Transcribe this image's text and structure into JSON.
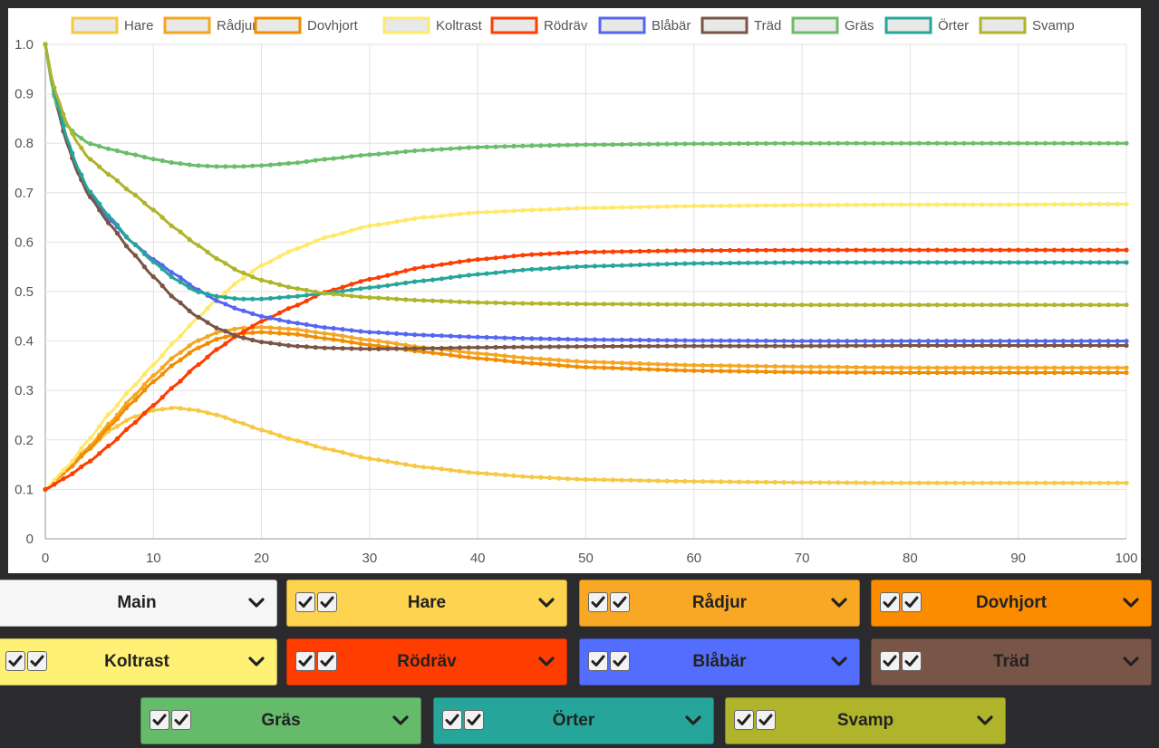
{
  "chart_data": {
    "type": "line",
    "title": "",
    "xlabel": "",
    "ylabel": "",
    "xlim": [
      0,
      100
    ],
    "ylim": [
      0,
      1
    ],
    "x_ticks": [
      "0",
      "10",
      "20",
      "30",
      "40",
      "50",
      "60",
      "70",
      "80",
      "90",
      "100"
    ],
    "y_ticks": [
      "0",
      "0.1",
      "0.2",
      "0.3",
      "0.4",
      "0.5",
      "0.6",
      "0.7",
      "0.8",
      "0.9",
      "1.0"
    ],
    "grid": true,
    "legend_position": "top",
    "series": [
      {
        "name": "Hare",
        "color": "#f7c843",
        "points": [
          [
            0,
            0.1
          ],
          [
            2,
            0.14
          ],
          [
            4,
            0.18
          ],
          [
            6,
            0.22
          ],
          [
            8,
            0.245
          ],
          [
            10,
            0.26
          ],
          [
            12,
            0.265
          ],
          [
            14,
            0.26
          ],
          [
            16,
            0.25
          ],
          [
            18,
            0.235
          ],
          [
            20,
            0.22
          ],
          [
            23,
            0.2
          ],
          [
            26,
            0.182
          ],
          [
            30,
            0.162
          ],
          [
            35,
            0.145
          ],
          [
            40,
            0.133
          ],
          [
            45,
            0.125
          ],
          [
            50,
            0.12
          ],
          [
            60,
            0.116
          ],
          [
            70,
            0.114
          ],
          [
            80,
            0.113
          ],
          [
            90,
            0.113
          ],
          [
            100,
            0.113
          ]
        ]
      },
      {
        "name": "Rådjur",
        "color": "#f5a623",
        "points": [
          [
            0,
            0.1
          ],
          [
            2,
            0.14
          ],
          [
            4,
            0.185
          ],
          [
            6,
            0.235
          ],
          [
            8,
            0.285
          ],
          [
            10,
            0.33
          ],
          [
            12,
            0.37
          ],
          [
            14,
            0.4
          ],
          [
            16,
            0.418
          ],
          [
            18,
            0.426
          ],
          [
            20,
            0.428
          ],
          [
            23,
            0.424
          ],
          [
            26,
            0.415
          ],
          [
            30,
            0.402
          ],
          [
            35,
            0.387
          ],
          [
            40,
            0.375
          ],
          [
            45,
            0.365
          ],
          [
            50,
            0.358
          ],
          [
            60,
            0.351
          ],
          [
            70,
            0.348
          ],
          [
            80,
            0.346
          ],
          [
            90,
            0.346
          ],
          [
            100,
            0.346
          ]
        ]
      },
      {
        "name": "Dovhjort",
        "color": "#f28c00",
        "points": [
          [
            0,
            0.1
          ],
          [
            2,
            0.138
          ],
          [
            4,
            0.18
          ],
          [
            6,
            0.228
          ],
          [
            8,
            0.275
          ],
          [
            10,
            0.318
          ],
          [
            12,
            0.355
          ],
          [
            14,
            0.385
          ],
          [
            16,
            0.405
          ],
          [
            18,
            0.415
          ],
          [
            20,
            0.418
          ],
          [
            23,
            0.414
          ],
          [
            26,
            0.405
          ],
          [
            30,
            0.392
          ],
          [
            35,
            0.378
          ],
          [
            40,
            0.365
          ],
          [
            45,
            0.355
          ],
          [
            50,
            0.347
          ],
          [
            60,
            0.34
          ],
          [
            70,
            0.337
          ],
          [
            80,
            0.336
          ],
          [
            90,
            0.336
          ],
          [
            100,
            0.336
          ]
        ]
      },
      {
        "name": "Koltrast",
        "color": "#ffe96b",
        "points": [
          [
            0,
            0.1
          ],
          [
            2,
            0.145
          ],
          [
            4,
            0.2
          ],
          [
            6,
            0.255
          ],
          [
            8,
            0.305
          ],
          [
            10,
            0.352
          ],
          [
            12,
            0.4
          ],
          [
            14,
            0.445
          ],
          [
            16,
            0.487
          ],
          [
            18,
            0.523
          ],
          [
            20,
            0.553
          ],
          [
            23,
            0.585
          ],
          [
            26,
            0.61
          ],
          [
            30,
            0.633
          ],
          [
            35,
            0.65
          ],
          [
            40,
            0.66
          ],
          [
            45,
            0.665
          ],
          [
            50,
            0.669
          ],
          [
            60,
            0.673
          ],
          [
            70,
            0.675
          ],
          [
            80,
            0.676
          ],
          [
            90,
            0.676
          ],
          [
            100,
            0.677
          ]
        ]
      },
      {
        "name": "Rödräv",
        "color": "#ff3d00",
        "points": [
          [
            0,
            0.1
          ],
          [
            2,
            0.125
          ],
          [
            4,
            0.155
          ],
          [
            6,
            0.19
          ],
          [
            8,
            0.23
          ],
          [
            10,
            0.27
          ],
          [
            12,
            0.31
          ],
          [
            14,
            0.35
          ],
          [
            16,
            0.385
          ],
          [
            18,
            0.415
          ],
          [
            20,
            0.44
          ],
          [
            23,
            0.47
          ],
          [
            26,
            0.5
          ],
          [
            30,
            0.525
          ],
          [
            35,
            0.55
          ],
          [
            40,
            0.565
          ],
          [
            45,
            0.575
          ],
          [
            50,
            0.58
          ],
          [
            60,
            0.583
          ],
          [
            70,
            0.584
          ],
          [
            80,
            0.584
          ],
          [
            90,
            0.584
          ],
          [
            100,
            0.584
          ]
        ]
      },
      {
        "name": "Blåbär",
        "color": "#5566f2",
        "points": [
          [
            0,
            1.0
          ],
          [
            0.5,
            0.94
          ],
          [
            1,
            0.88
          ],
          [
            2,
            0.8
          ],
          [
            3,
            0.74
          ],
          [
            4,
            0.7
          ],
          [
            6,
            0.645
          ],
          [
            8,
            0.6
          ],
          [
            10,
            0.565
          ],
          [
            12,
            0.535
          ],
          [
            14,
            0.505
          ],
          [
            16,
            0.48
          ],
          [
            18,
            0.463
          ],
          [
            20,
            0.45
          ],
          [
            23,
            0.437
          ],
          [
            26,
            0.427
          ],
          [
            30,
            0.418
          ],
          [
            35,
            0.412
          ],
          [
            40,
            0.408
          ],
          [
            45,
            0.405
          ],
          [
            50,
            0.403
          ],
          [
            60,
            0.401
          ],
          [
            70,
            0.4
          ],
          [
            80,
            0.4
          ],
          [
            90,
            0.4
          ],
          [
            100,
            0.4
          ]
        ]
      },
      {
        "name": "Träd",
        "color": "#7a5545",
        "points": [
          [
            0,
            1.0
          ],
          [
            0.5,
            0.94
          ],
          [
            1,
            0.88
          ],
          [
            2,
            0.8
          ],
          [
            3,
            0.74
          ],
          [
            4,
            0.695
          ],
          [
            6,
            0.635
          ],
          [
            8,
            0.58
          ],
          [
            10,
            0.53
          ],
          [
            12,
            0.485
          ],
          [
            14,
            0.45
          ],
          [
            16,
            0.425
          ],
          [
            18,
            0.408
          ],
          [
            20,
            0.398
          ],
          [
            23,
            0.39
          ],
          [
            26,
            0.386
          ],
          [
            30,
            0.384
          ],
          [
            35,
            0.385
          ],
          [
            40,
            0.387
          ],
          [
            45,
            0.388
          ],
          [
            50,
            0.389
          ],
          [
            60,
            0.39
          ],
          [
            70,
            0.39
          ],
          [
            80,
            0.391
          ],
          [
            90,
            0.391
          ],
          [
            100,
            0.391
          ]
        ]
      },
      {
        "name": "Gräs",
        "color": "#6bbd6b",
        "points": [
          [
            0,
            1.0
          ],
          [
            0.5,
            0.93
          ],
          [
            1,
            0.88
          ],
          [
            2,
            0.835
          ],
          [
            3,
            0.815
          ],
          [
            4,
            0.8
          ],
          [
            6,
            0.788
          ],
          [
            8,
            0.778
          ],
          [
            10,
            0.768
          ],
          [
            12,
            0.76
          ],
          [
            14,
            0.755
          ],
          [
            16,
            0.753
          ],
          [
            18,
            0.753
          ],
          [
            20,
            0.755
          ],
          [
            23,
            0.76
          ],
          [
            26,
            0.768
          ],
          [
            30,
            0.777
          ],
          [
            35,
            0.786
          ],
          [
            40,
            0.792
          ],
          [
            45,
            0.795
          ],
          [
            50,
            0.797
          ],
          [
            60,
            0.799
          ],
          [
            70,
            0.8
          ],
          [
            80,
            0.8
          ],
          [
            90,
            0.8
          ],
          [
            100,
            0.8
          ]
        ]
      },
      {
        "name": "Örter",
        "color": "#26a69a",
        "points": [
          [
            0,
            1.0
          ],
          [
            0.5,
            0.94
          ],
          [
            1,
            0.89
          ],
          [
            2,
            0.81
          ],
          [
            3,
            0.75
          ],
          [
            4,
            0.705
          ],
          [
            6,
            0.65
          ],
          [
            8,
            0.6
          ],
          [
            10,
            0.56
          ],
          [
            12,
            0.525
          ],
          [
            14,
            0.5
          ],
          [
            16,
            0.49
          ],
          [
            18,
            0.485
          ],
          [
            20,
            0.485
          ],
          [
            23,
            0.49
          ],
          [
            26,
            0.497
          ],
          [
            30,
            0.508
          ],
          [
            35,
            0.522
          ],
          [
            40,
            0.535
          ],
          [
            45,
            0.545
          ],
          [
            50,
            0.551
          ],
          [
            60,
            0.557
          ],
          [
            70,
            0.559
          ],
          [
            80,
            0.559
          ],
          [
            90,
            0.559
          ],
          [
            100,
            0.559
          ]
        ]
      },
      {
        "name": "Svamp",
        "color": "#afb42b",
        "points": [
          [
            0,
            1.0
          ],
          [
            0.5,
            0.94
          ],
          [
            1,
            0.9
          ],
          [
            2,
            0.84
          ],
          [
            3,
            0.8
          ],
          [
            4,
            0.77
          ],
          [
            6,
            0.735
          ],
          [
            8,
            0.7
          ],
          [
            10,
            0.665
          ],
          [
            12,
            0.628
          ],
          [
            14,
            0.595
          ],
          [
            16,
            0.565
          ],
          [
            18,
            0.54
          ],
          [
            20,
            0.523
          ],
          [
            23,
            0.507
          ],
          [
            26,
            0.496
          ],
          [
            30,
            0.488
          ],
          [
            35,
            0.482
          ],
          [
            40,
            0.478
          ],
          [
            45,
            0.476
          ],
          [
            50,
            0.475
          ],
          [
            60,
            0.474
          ],
          [
            70,
            0.473
          ],
          [
            80,
            0.473
          ],
          [
            90,
            0.473
          ],
          [
            100,
            0.473
          ]
        ]
      }
    ]
  },
  "controls": [
    {
      "label": "Main",
      "bg": "#f6f6f6",
      "checks": false
    },
    {
      "label": "Hare",
      "bg": "#fdd34f",
      "checks": true
    },
    {
      "label": "Rådjur",
      "bg": "#f9a825",
      "checks": true
    },
    {
      "label": "Dovhjort",
      "bg": "#fb8c00",
      "checks": true
    },
    {
      "label": "Koltrast",
      "bg": "#fff176",
      "checks": true
    },
    {
      "label": "Rödräv",
      "bg": "#ff3d00",
      "checks": true
    },
    {
      "label": "Blåbär",
      "bg": "#536dfe",
      "checks": true
    },
    {
      "label": "Träd",
      "bg": "#795548",
      "checks": true
    },
    {
      "label": "Gräs",
      "bg": "#66bb6a",
      "checks": true
    },
    {
      "label": "Örter",
      "bg": "#26a69a",
      "checks": true
    },
    {
      "label": "Svamp",
      "bg": "#afb42b",
      "checks": true
    }
  ]
}
